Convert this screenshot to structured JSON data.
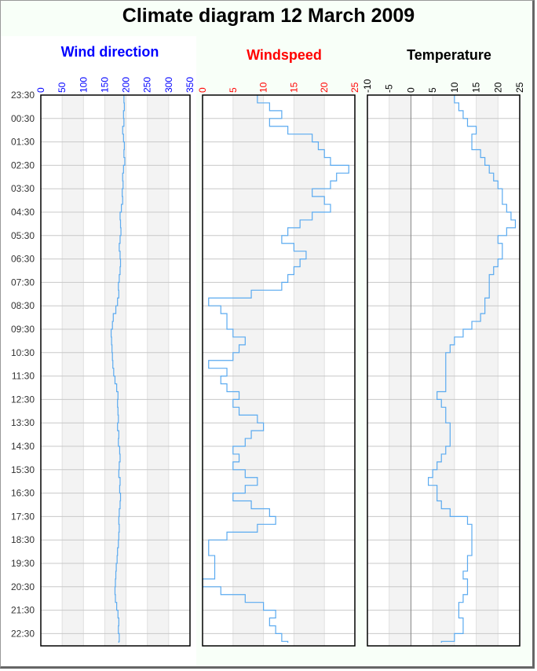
{
  "title": "Climate diagram 12 March 2009",
  "chart_data": [
    {
      "type": "line",
      "title": "Wind direction",
      "title_color": "#0000ff",
      "tick_color": "#0000ff",
      "orientation": "vertical-time",
      "xlim": [
        0,
        350
      ],
      "xticks": [
        0,
        50,
        100,
        150,
        200,
        250,
        300,
        350
      ],
      "shaded_bands": [
        [
          50,
          100
        ],
        [
          150,
          200
        ],
        [
          250,
          300
        ]
      ],
      "line_color": "#5aaaf0",
      "grid": true,
      "values": [
        195,
        196,
        194,
        195,
        192,
        194,
        196,
        195,
        197,
        194,
        192,
        193,
        191,
        192,
        189,
        186,
        187,
        188,
        186,
        184,
        186,
        187,
        186,
        184,
        182,
        183,
        180,
        176,
        170,
        168,
        165,
        166,
        167,
        168,
        169,
        171,
        174,
        178,
        181,
        180,
        181,
        182,
        180,
        183,
        182,
        185,
        186,
        184,
        183,
        186,
        185,
        187,
        186,
        184,
        183,
        184,
        183,
        182,
        180,
        179,
        177,
        176,
        175,
        174,
        175,
        178,
        181,
        183,
        182,
        184,
        183
      ]
    },
    {
      "type": "line",
      "title": "Windspeed",
      "title_color": "#ff0000",
      "tick_color": "#ff0000",
      "orientation": "vertical-time",
      "xlim": [
        0,
        25
      ],
      "xticks": [
        0,
        5,
        10,
        15,
        20,
        25
      ],
      "shaded_bands": [
        [
          5,
          10
        ],
        [
          15,
          20
        ]
      ],
      "line_color": "#5aaaf0",
      "grid": true,
      "values": [
        9,
        11,
        13,
        11,
        14,
        18,
        19,
        20,
        21,
        24,
        22,
        21,
        18,
        20,
        21,
        18,
        16,
        14,
        13,
        15,
        17,
        16,
        15,
        14,
        13,
        8,
        1,
        3,
        4,
        4,
        5,
        7,
        6,
        5,
        1,
        4,
        3,
        4,
        6,
        5,
        6,
        9,
        10,
        8,
        7,
        5,
        6,
        5,
        7,
        9,
        7,
        5,
        8,
        11,
        12,
        9,
        4,
        1,
        1,
        2,
        2,
        2,
        0,
        3,
        7,
        10,
        12,
        11,
        12,
        13,
        14
      ]
    },
    {
      "type": "line",
      "title": "Temperature",
      "title_color": "#000000",
      "tick_color": "#000000",
      "orientation": "vertical-time",
      "xlim": [
        -10,
        25
      ],
      "xticks": [
        -10,
        -5,
        0,
        5,
        10,
        15,
        20,
        25
      ],
      "shaded_bands": [
        [
          -5,
          0
        ],
        [
          5,
          10
        ],
        [
          15,
          20
        ]
      ],
      "zero_line": true,
      "line_color": "#5aaaf0",
      "grid": true,
      "values": [
        10,
        11,
        12,
        13,
        15,
        14,
        14,
        16,
        17,
        18,
        19,
        20,
        21,
        21,
        22,
        23,
        24,
        22,
        20,
        21,
        21,
        20,
        19,
        18,
        18,
        18,
        17,
        17,
        16,
        14,
        12,
        10,
        9,
        8,
        8,
        8,
        8,
        8,
        6,
        7,
        8,
        8,
        9,
        9,
        9,
        8,
        7,
        6,
        5,
        4,
        6,
        6,
        7,
        9,
        13,
        14,
        14,
        14,
        14,
        13,
        13,
        12,
        13,
        13,
        12,
        11,
        11,
        12,
        12,
        10,
        7
      ]
    }
  ],
  "time_axis": {
    "start": "23:30",
    "step_minutes": 20,
    "labels": [
      "23:30",
      "00:30",
      "01:30",
      "02:30",
      "03:30",
      "04:30",
      "05:30",
      "06:30",
      "07:30",
      "08:30",
      "09:30",
      "10:30",
      "11:30",
      "12:30",
      "13:30",
      "14:30",
      "15:30",
      "16:30",
      "17:30",
      "18:30",
      "19:30",
      "20:30",
      "21:30",
      "22:30"
    ]
  }
}
